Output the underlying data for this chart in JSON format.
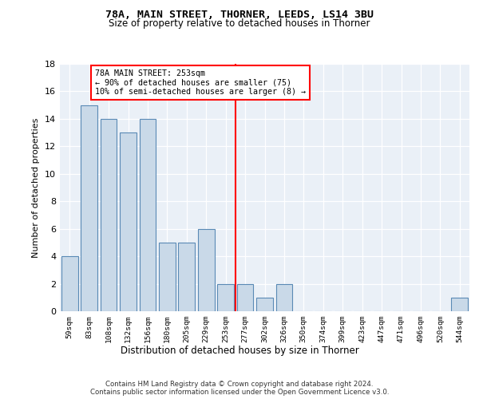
{
  "title1": "78A, MAIN STREET, THORNER, LEEDS, LS14 3BU",
  "title2": "Size of property relative to detached houses in Thorner",
  "xlabel": "Distribution of detached houses by size in Thorner",
  "ylabel": "Number of detached properties",
  "categories": [
    "59sqm",
    "83sqm",
    "108sqm",
    "132sqm",
    "156sqm",
    "180sqm",
    "205sqm",
    "229sqm",
    "253sqm",
    "277sqm",
    "302sqm",
    "326sqm",
    "350sqm",
    "374sqm",
    "399sqm",
    "423sqm",
    "447sqm",
    "471sqm",
    "496sqm",
    "520sqm",
    "544sqm"
  ],
  "values": [
    4,
    15,
    14,
    13,
    14,
    5,
    5,
    6,
    2,
    2,
    1,
    2,
    0,
    0,
    0,
    0,
    0,
    0,
    0,
    0,
    1
  ],
  "bar_color": "#c9d9e8",
  "bar_edge_color": "#5a8ab5",
  "annotation_line1": "78A MAIN STREET: 253sqm",
  "annotation_line2": "← 90% of detached houses are smaller (75)",
  "annotation_line3": "10% of semi-detached houses are larger (8) →",
  "annotation_box_color": "white",
  "annotation_box_edge_color": "red",
  "vline_color": "red",
  "vline_x_index": 8,
  "ylim": [
    0,
    18
  ],
  "yticks": [
    0,
    2,
    4,
    6,
    8,
    10,
    12,
    14,
    16,
    18
  ],
  "background_color": "#eaf0f7",
  "footer1": "Contains HM Land Registry data © Crown copyright and database right 2024.",
  "footer2": "Contains public sector information licensed under the Open Government Licence v3.0."
}
